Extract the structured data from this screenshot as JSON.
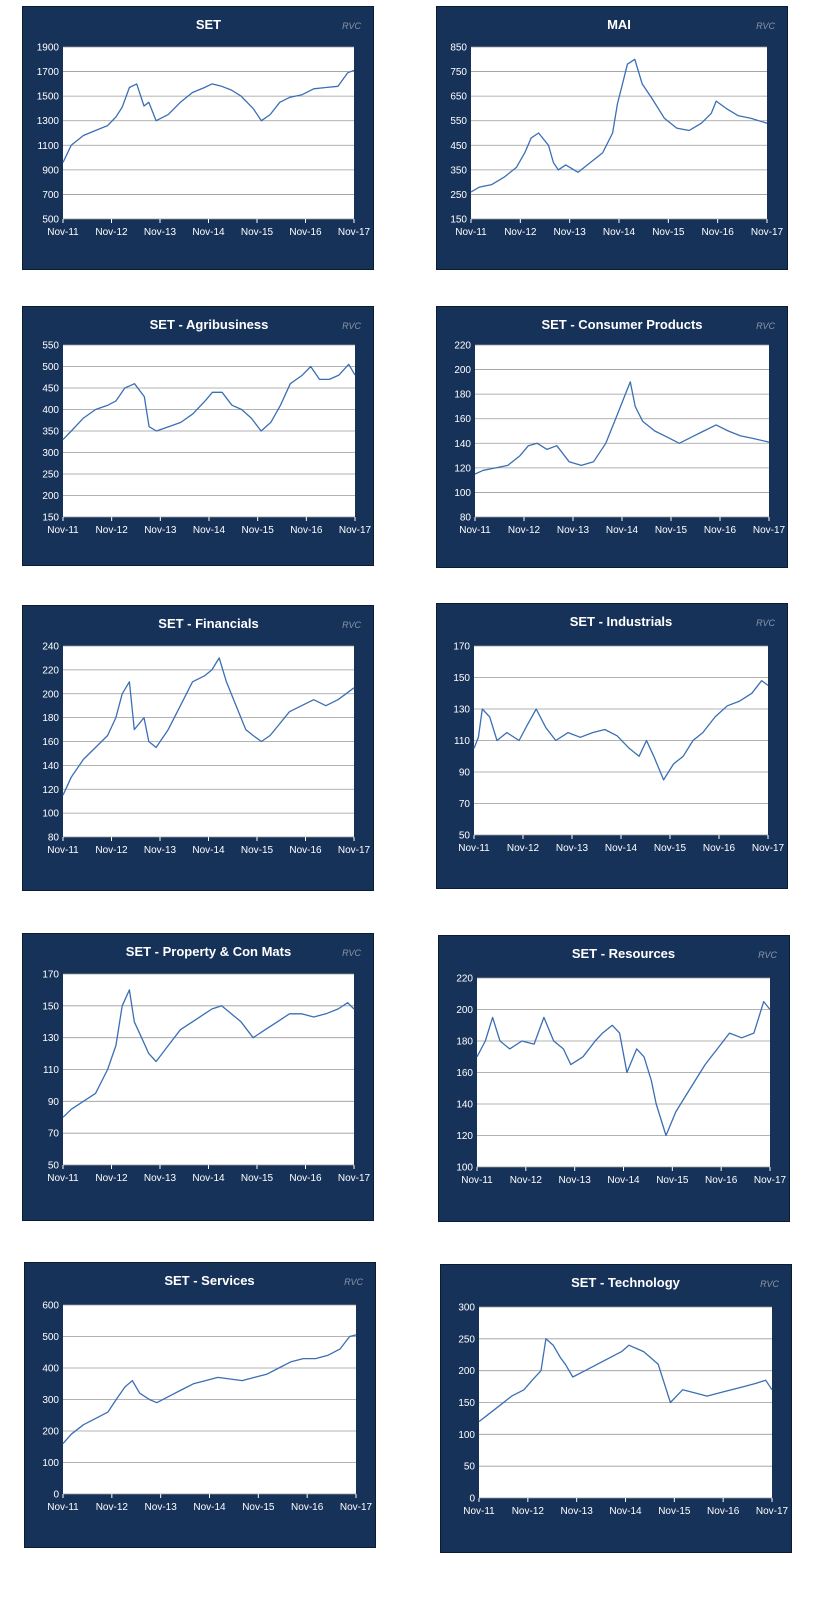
{
  "watermark": "RVC",
  "x_labels": [
    "Nov-11",
    "Nov-12",
    "Nov-13",
    "Nov-14",
    "Nov-15",
    "Nov-16",
    "Nov-17"
  ],
  "colors": {
    "panel": "#173259",
    "plot": "#ffffff",
    "line": "#3b6fb4",
    "grid": "#9a9a9a"
  },
  "chart_data": [
    {
      "type": "line",
      "title": "SET",
      "ylim": [
        500,
        1900
      ],
      "yticks": [
        500,
        700,
        900,
        1100,
        1300,
        1500,
        1700,
        1900
      ],
      "x": [
        2011.83,
        2012.0,
        2012.25,
        2012.5,
        2012.75,
        2012.92,
        2013.05,
        2013.2,
        2013.35,
        2013.5,
        2013.6,
        2013.75,
        2014.0,
        2014.25,
        2014.5,
        2014.75,
        2014.9,
        2015.1,
        2015.3,
        2015.5,
        2015.75,
        2015.92,
        2016.1,
        2016.3,
        2016.5,
        2016.75,
        2017.0,
        2017.25,
        2017.5,
        2017.7,
        2017.83
      ],
      "y": [
        960,
        1100,
        1180,
        1220,
        1260,
        1330,
        1410,
        1570,
        1600,
        1420,
        1450,
        1300,
        1350,
        1450,
        1530,
        1570,
        1600,
        1580,
        1550,
        1500,
        1400,
        1300,
        1350,
        1450,
        1490,
        1510,
        1560,
        1570,
        1580,
        1690,
        1710
      ]
    },
    {
      "type": "line",
      "title": "MAI",
      "ylim": [
        150,
        850
      ],
      "yticks": [
        150,
        250,
        350,
        450,
        550,
        650,
        750,
        850
      ],
      "x": [
        2011.83,
        2012.0,
        2012.25,
        2012.5,
        2012.75,
        2012.92,
        2013.05,
        2013.2,
        2013.4,
        2013.5,
        2013.6,
        2013.75,
        2014.0,
        2014.25,
        2014.5,
        2014.7,
        2014.8,
        2014.9,
        2015.0,
        2015.15,
        2015.3,
        2015.5,
        2015.75,
        2016.0,
        2016.25,
        2016.5,
        2016.7,
        2016.8,
        2017.0,
        2017.25,
        2017.5,
        2017.83
      ],
      "y": [
        260,
        280,
        290,
        320,
        360,
        420,
        480,
        500,
        450,
        380,
        350,
        370,
        340,
        380,
        420,
        500,
        620,
        700,
        780,
        800,
        700,
        640,
        560,
        520,
        510,
        540,
        580,
        630,
        600,
        570,
        560,
        540
      ]
    },
    {
      "type": "line",
      "title": "SET - Agribusiness",
      "ylim": [
        150,
        550
      ],
      "yticks": [
        150,
        200,
        250,
        300,
        350,
        400,
        450,
        500,
        550
      ],
      "x": [
        2011.83,
        2012.0,
        2012.25,
        2012.5,
        2012.75,
        2012.92,
        2013.1,
        2013.3,
        2013.5,
        2013.6,
        2013.75,
        2014.0,
        2014.25,
        2014.5,
        2014.75,
        2014.9,
        2015.1,
        2015.3,
        2015.5,
        2015.7,
        2015.9,
        2016.1,
        2016.3,
        2016.5,
        2016.75,
        2016.92,
        2017.1,
        2017.3,
        2017.5,
        2017.7,
        2017.83
      ],
      "y": [
        330,
        350,
        380,
        400,
        410,
        420,
        450,
        460,
        430,
        360,
        350,
        360,
        370,
        390,
        420,
        440,
        440,
        410,
        400,
        380,
        350,
        370,
        410,
        460,
        480,
        500,
        470,
        470,
        480,
        505,
        480
      ]
    },
    {
      "type": "line",
      "title": "SET - Consumer Products",
      "ylim": [
        80,
        220
      ],
      "yticks": [
        80,
        100,
        120,
        140,
        160,
        180,
        200,
        220
      ],
      "x": [
        2011.83,
        2012.0,
        2012.25,
        2012.5,
        2012.75,
        2012.92,
        2013.1,
        2013.3,
        2013.5,
        2013.75,
        2014.0,
        2014.25,
        2014.5,
        2014.75,
        2014.9,
        2015.0,
        2015.1,
        2015.25,
        2015.5,
        2015.75,
        2016.0,
        2016.25,
        2016.5,
        2016.75,
        2017.0,
        2017.25,
        2017.5,
        2017.83
      ],
      "y": [
        115,
        118,
        120,
        122,
        130,
        138,
        140,
        135,
        138,
        125,
        122,
        125,
        140,
        165,
        180,
        190,
        170,
        158,
        150,
        145,
        140,
        145,
        150,
        155,
        150,
        146,
        144,
        141
      ]
    },
    {
      "type": "line",
      "title": "SET - Financials",
      "ylim": [
        80,
        240
      ],
      "yticks": [
        80,
        100,
        120,
        140,
        160,
        180,
        200,
        220,
        240
      ],
      "x": [
        2011.83,
        2012.0,
        2012.25,
        2012.5,
        2012.75,
        2012.92,
        2013.05,
        2013.2,
        2013.3,
        2013.5,
        2013.6,
        2013.75,
        2014.0,
        2014.25,
        2014.5,
        2014.75,
        2014.9,
        2015.05,
        2015.2,
        2015.4,
        2015.6,
        2015.75,
        2015.92,
        2016.1,
        2016.3,
        2016.5,
        2016.75,
        2017.0,
        2017.25,
        2017.5,
        2017.83
      ],
      "y": [
        115,
        130,
        145,
        155,
        165,
        180,
        200,
        210,
        170,
        180,
        160,
        155,
        170,
        190,
        210,
        215,
        220,
        230,
        210,
        190,
        170,
        165,
        160,
        165,
        175,
        185,
        190,
        195,
        190,
        195,
        205
      ]
    },
    {
      "type": "line",
      "title": "SET - Industrials",
      "ylim": [
        50,
        170
      ],
      "yticks": [
        50,
        70,
        90,
        110,
        130,
        150,
        170
      ],
      "x": [
        2011.83,
        2011.92,
        2012.0,
        2012.15,
        2012.3,
        2012.5,
        2012.75,
        2012.92,
        2013.1,
        2013.3,
        2013.5,
        2013.75,
        2014.0,
        2014.25,
        2014.5,
        2014.75,
        2015.0,
        2015.2,
        2015.35,
        2015.5,
        2015.7,
        2015.9,
        2016.1,
        2016.3,
        2016.5,
        2016.75,
        2017.0,
        2017.25,
        2017.5,
        2017.7,
        2017.83
      ],
      "y": [
        105,
        112,
        130,
        125,
        110,
        115,
        110,
        120,
        130,
        118,
        110,
        115,
        112,
        115,
        117,
        113,
        105,
        100,
        110,
        100,
        85,
        95,
        100,
        110,
        115,
        125,
        132,
        135,
        140,
        148,
        145
      ]
    },
    {
      "type": "line",
      "title": "SET - Property & Con Mats",
      "ylim": [
        50,
        170
      ],
      "yticks": [
        50,
        70,
        90,
        110,
        130,
        150,
        170
      ],
      "x": [
        2011.83,
        2012.0,
        2012.25,
        2012.5,
        2012.75,
        2012.92,
        2013.05,
        2013.2,
        2013.3,
        2013.45,
        2013.6,
        2013.75,
        2014.0,
        2014.25,
        2014.5,
        2014.75,
        2014.9,
        2015.1,
        2015.3,
        2015.5,
        2015.75,
        2016.0,
        2016.25,
        2016.5,
        2016.75,
        2017.0,
        2017.25,
        2017.5,
        2017.7,
        2017.83
      ],
      "y": [
        80,
        85,
        90,
        95,
        110,
        125,
        150,
        160,
        140,
        130,
        120,
        115,
        125,
        135,
        140,
        145,
        148,
        150,
        145,
        140,
        130,
        135,
        140,
        145,
        145,
        143,
        145,
        148,
        152,
        148
      ]
    },
    {
      "type": "line",
      "title": "SET - Resources",
      "ylim": [
        100,
        220
      ],
      "yticks": [
        100,
        120,
        140,
        160,
        180,
        200,
        220
      ],
      "x": [
        2011.83,
        2012.0,
        2012.15,
        2012.3,
        2012.5,
        2012.75,
        2013.0,
        2013.2,
        2013.4,
        2013.6,
        2013.75,
        2014.0,
        2014.25,
        2014.4,
        2014.6,
        2014.75,
        2014.9,
        2015.1,
        2015.25,
        2015.4,
        2015.5,
        2015.7,
        2015.9,
        2016.1,
        2016.3,
        2016.5,
        2016.75,
        2017.0,
        2017.25,
        2017.5,
        2017.7,
        2017.83
      ],
      "y": [
        170,
        180,
        195,
        180,
        175,
        180,
        178,
        195,
        180,
        175,
        165,
        170,
        180,
        185,
        190,
        185,
        160,
        175,
        170,
        155,
        140,
        120,
        135,
        145,
        155,
        165,
        175,
        185,
        182,
        185,
        205,
        200
      ]
    },
    {
      "type": "line",
      "title": "SET - Services",
      "ylim": [
        0,
        600
      ],
      "yticks": [
        0,
        100,
        200,
        300,
        400,
        500,
        600
      ],
      "x": [
        2011.83,
        2012.0,
        2012.25,
        2012.5,
        2012.75,
        2012.92,
        2013.1,
        2013.25,
        2013.4,
        2013.6,
        2013.75,
        2014.0,
        2014.25,
        2014.5,
        2014.75,
        2015.0,
        2015.25,
        2015.5,
        2015.75,
        2016.0,
        2016.25,
        2016.5,
        2016.75,
        2017.0,
        2017.25,
        2017.5,
        2017.7,
        2017.83
      ],
      "y": [
        160,
        190,
        220,
        240,
        260,
        300,
        340,
        360,
        320,
        300,
        290,
        310,
        330,
        350,
        360,
        370,
        365,
        360,
        370,
        380,
        400,
        420,
        430,
        430,
        440,
        460,
        500,
        505
      ]
    },
    {
      "type": "line",
      "title": "SET - Technology",
      "ylim": [
        0,
        300
      ],
      "yticks": [
        0,
        50,
        100,
        150,
        200,
        250,
        300
      ],
      "x": [
        2011.83,
        2012.0,
        2012.25,
        2012.5,
        2012.75,
        2012.92,
        2013.1,
        2013.2,
        2013.35,
        2013.5,
        2013.6,
        2013.75,
        2014.0,
        2014.25,
        2014.5,
        2014.75,
        2014.9,
        2015.05,
        2015.2,
        2015.35,
        2015.5,
        2015.75,
        2016.0,
        2016.25,
        2016.5,
        2016.75,
        2017.0,
        2017.25,
        2017.5,
        2017.7,
        2017.83
      ],
      "y": [
        120,
        130,
        145,
        160,
        170,
        185,
        200,
        250,
        240,
        220,
        210,
        190,
        200,
        210,
        220,
        230,
        240,
        235,
        230,
        220,
        210,
        150,
        170,
        165,
        160,
        165,
        170,
        175,
        180,
        185,
        170
      ]
    }
  ]
}
